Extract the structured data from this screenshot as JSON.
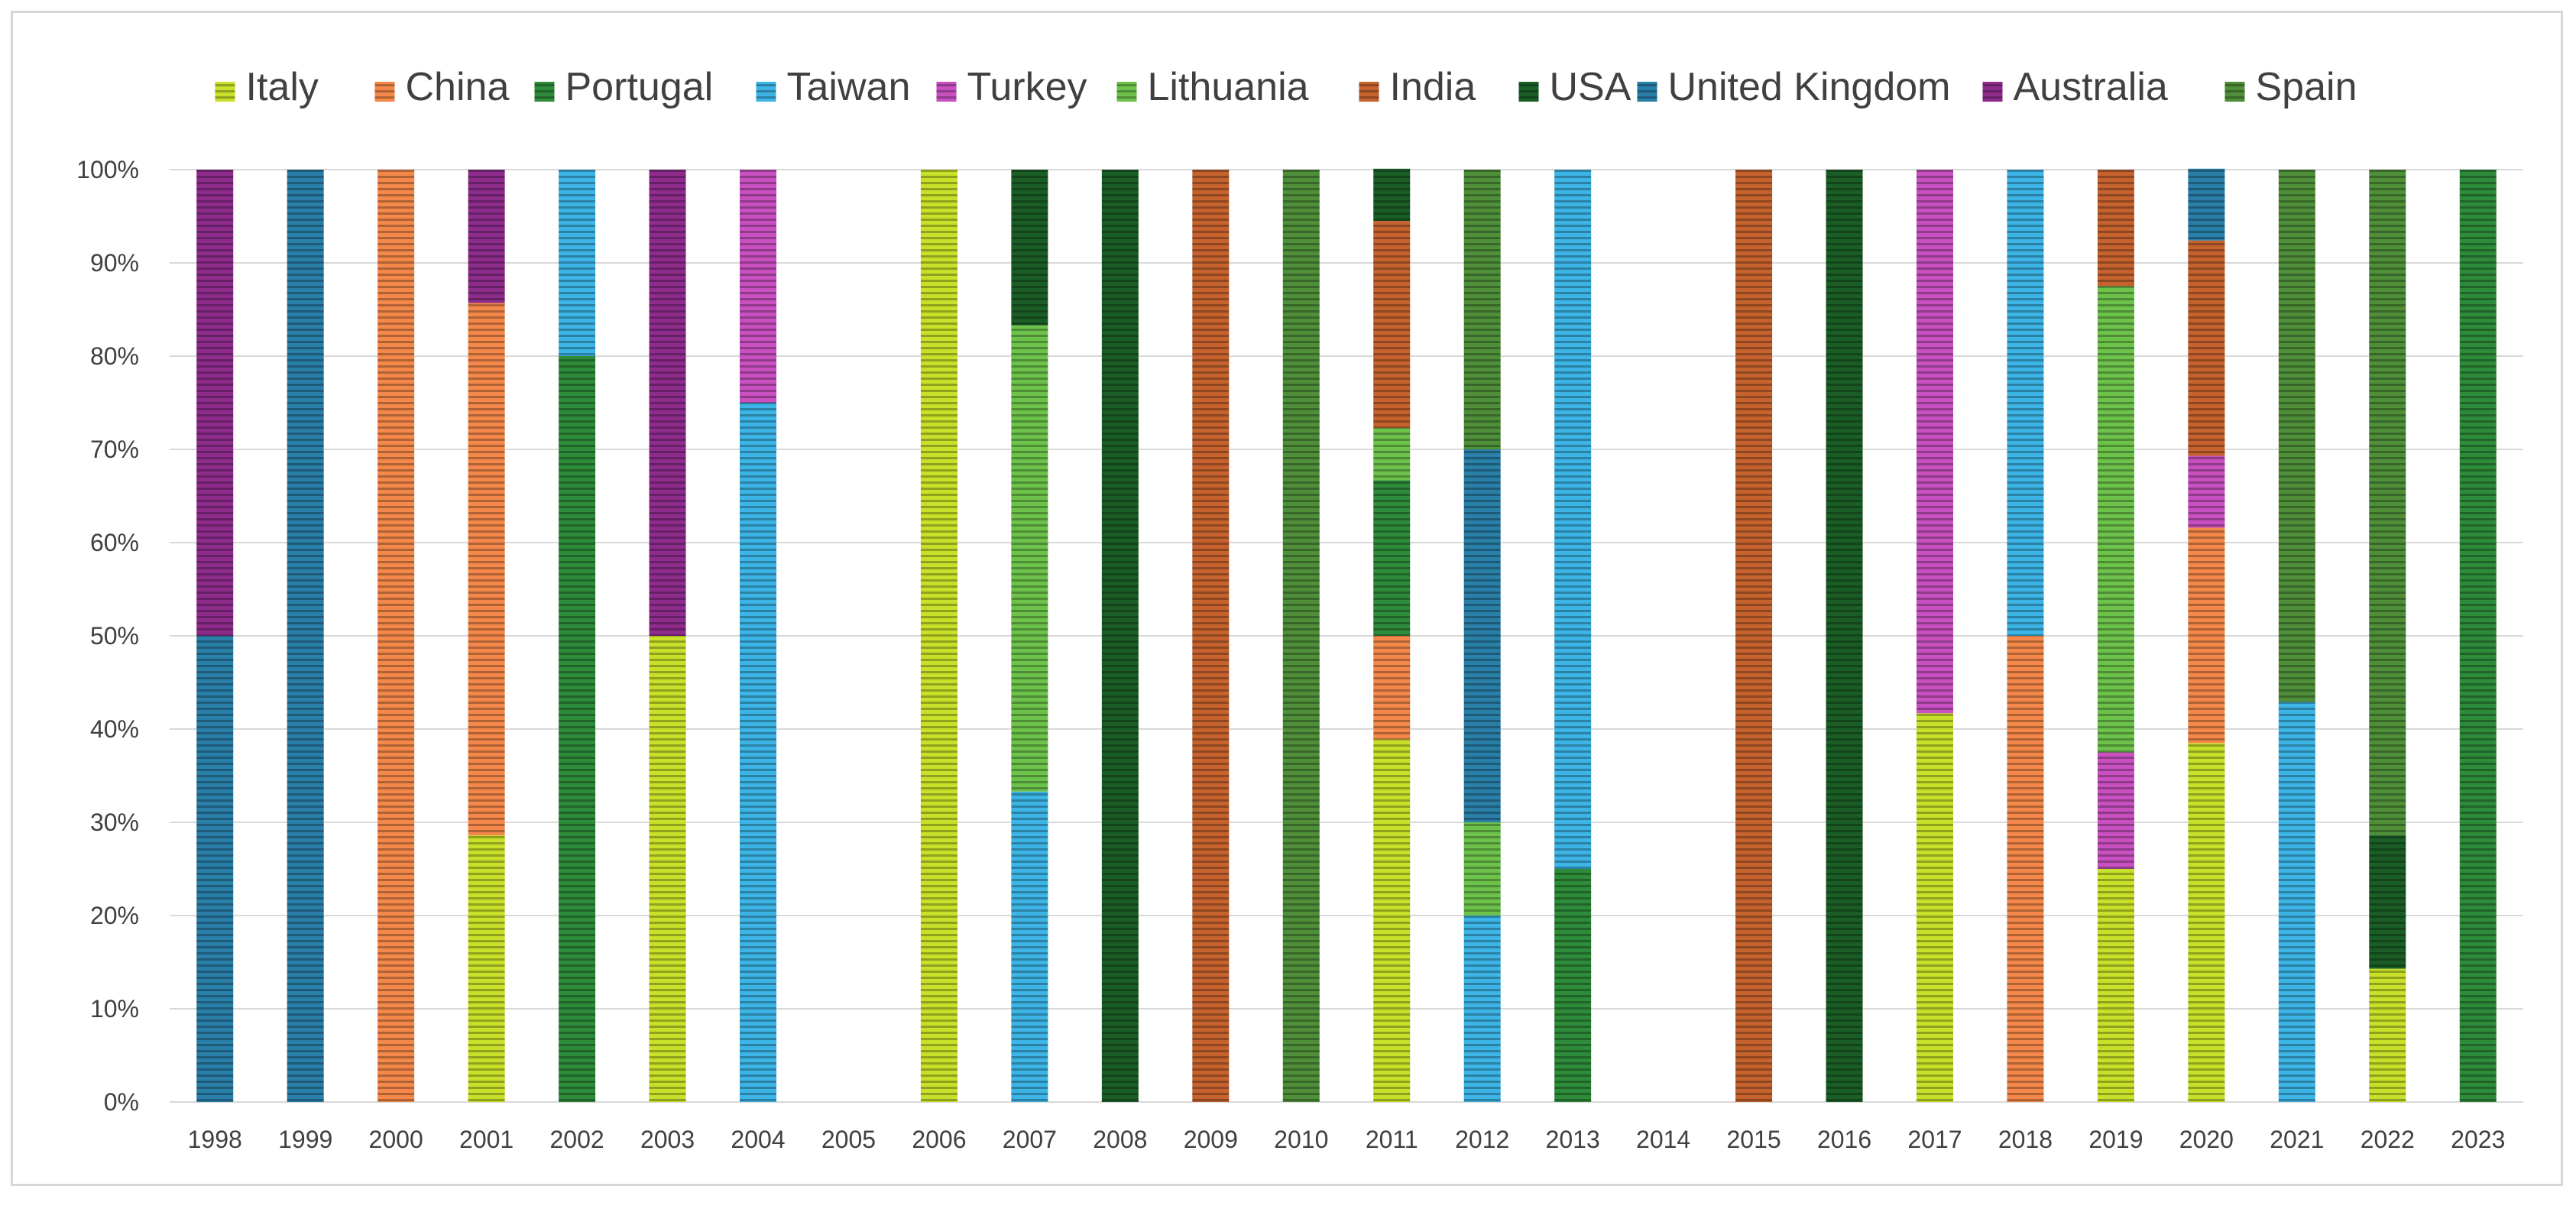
{
  "chart_data": {
    "type": "bar",
    "stacked": true,
    "percent": true,
    "categories": [
      "1998",
      "1999",
      "2000",
      "2001",
      "2002",
      "2003",
      "2004",
      "2005",
      "2006",
      "2007",
      "2008",
      "2009",
      "2010",
      "2011",
      "2012",
      "2013",
      "2014",
      "2015",
      "2016",
      "2017",
      "2018",
      "2019",
      "2020",
      "2021",
      "2022",
      "2023"
    ],
    "ylim": [
      0,
      100
    ],
    "yticks": [
      "0%",
      "10%",
      "20%",
      "30%",
      "40%",
      "50%",
      "60%",
      "70%",
      "80%",
      "90%",
      "100%"
    ],
    "grid": true,
    "legend_position": "top",
    "series": [
      {
        "name": "Italy",
        "color": "#c8e02a",
        "values": [
          0,
          0,
          0,
          28.6,
          0,
          50,
          0,
          0,
          100,
          0,
          0,
          0,
          0,
          38.9,
          0,
          0,
          0,
          0,
          0,
          41.7,
          0,
          25,
          38.5,
          0,
          14.3,
          0
        ]
      },
      {
        "name": "China",
        "color": "#f4884a",
        "values": [
          0,
          0,
          100,
          57.1,
          0,
          0,
          0,
          0,
          0,
          0,
          0,
          0,
          0,
          11.1,
          0,
          0,
          0,
          0,
          0,
          0,
          50,
          0,
          23.1,
          0,
          0,
          0
        ]
      },
      {
        "name": "Portugal",
        "color": "#2e8b3a",
        "values": [
          0,
          0,
          0,
          0,
          80,
          0,
          0,
          0,
          0,
          0,
          0,
          0,
          0,
          16.7,
          0,
          25,
          0,
          0,
          0,
          0,
          0,
          0,
          0,
          0,
          0,
          100
        ]
      },
      {
        "name": "Taiwan",
        "color": "#3cb4e5",
        "values": [
          0,
          0,
          0,
          0,
          20,
          0,
          75,
          0,
          0,
          33.3,
          0,
          0,
          0,
          0,
          20,
          75,
          0,
          0,
          0,
          0,
          50,
          0,
          0,
          42.9,
          0,
          0
        ]
      },
      {
        "name": "Turkey",
        "color": "#c850c0",
        "values": [
          0,
          0,
          0,
          0,
          0,
          0,
          25,
          0,
          0,
          0,
          0,
          0,
          0,
          0,
          0,
          0,
          0,
          0,
          0,
          58.3,
          0,
          12.5,
          7.7,
          0,
          0,
          0
        ]
      },
      {
        "name": "Lithuania",
        "color": "#6cc24a",
        "values": [
          0,
          0,
          0,
          0,
          0,
          0,
          0,
          0,
          0,
          50,
          0,
          0,
          0,
          5.6,
          10,
          0,
          0,
          0,
          0,
          0,
          0,
          50,
          0,
          0,
          0,
          0
        ]
      },
      {
        "name": "India",
        "color": "#c5622e",
        "values": [
          0,
          0,
          0,
          0,
          0,
          0,
          0,
          0,
          0,
          0,
          0,
          100,
          0,
          22.2,
          0,
          0,
          0,
          100,
          0,
          0,
          0,
          12.5,
          23.1,
          0,
          0,
          0
        ]
      },
      {
        "name": "USA",
        "color": "#1a5e26",
        "values": [
          0,
          0,
          0,
          0,
          0,
          0,
          0,
          0,
          0,
          16.7,
          100,
          0,
          0,
          5.6,
          0,
          0,
          0,
          0,
          100,
          0,
          0,
          0,
          0,
          0,
          14.3,
          0
        ]
      },
      {
        "name": "United Kingdom",
        "color": "#2a7fa8",
        "values": [
          50,
          100,
          0,
          0,
          0,
          0,
          0,
          0,
          0,
          0,
          0,
          0,
          0,
          0,
          40,
          0,
          0,
          0,
          0,
          0,
          0,
          0,
          7.7,
          0,
          0,
          0
        ]
      },
      {
        "name": "Australia",
        "color": "#8e2c8c",
        "values": [
          50,
          0,
          0,
          14.3,
          0,
          50,
          0,
          0,
          0,
          0,
          0,
          0,
          0,
          0,
          0,
          0,
          0,
          0,
          0,
          0,
          0,
          0,
          0,
          0,
          0,
          0
        ]
      },
      {
        "name": "Spain",
        "color": "#4f8f3a",
        "values": [
          0,
          0,
          0,
          0,
          0,
          0,
          0,
          0,
          0,
          0,
          0,
          0,
          100,
          0,
          30,
          0,
          0,
          0,
          0,
          0,
          0,
          0,
          0,
          57.1,
          71.4,
          0
        ]
      }
    ]
  }
}
